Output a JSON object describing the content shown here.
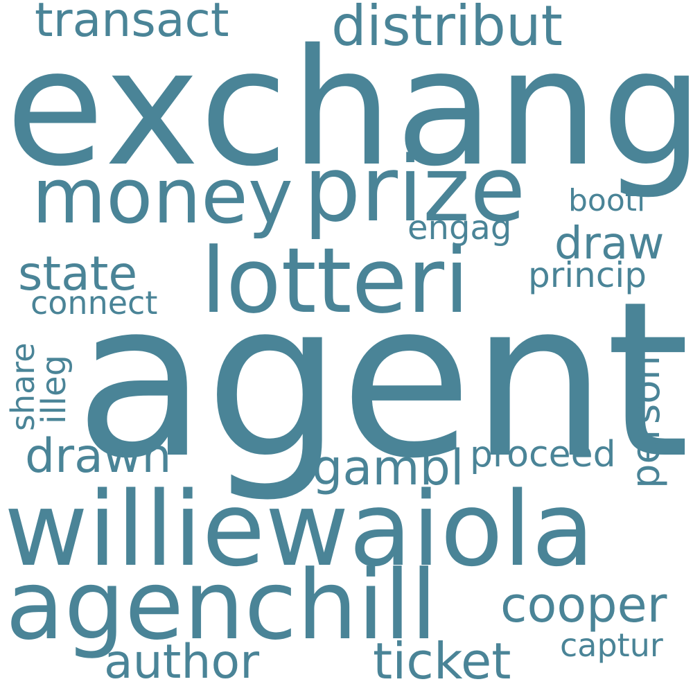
{
  "word_color": "#4a8497",
  "background": "#ffffff",
  "words": {
    "exchang": "exchang",
    "agent": "agent",
    "williewaiola": "williewaiola",
    "agenchill": "agenchill",
    "lotteri": "lotteri",
    "money": "money",
    "prize": "prize",
    "transact": "transact",
    "distribut": "distribut",
    "booti": "booti",
    "engag": "engag",
    "draw": "draw",
    "state": "state",
    "princip": "princip",
    "connect": "connect",
    "share": "share",
    "illeg": "illeg",
    "person": "person",
    "drawn": "drawn",
    "gambl": "gambl",
    "proceed": "proceed",
    "cooper": "cooper",
    "author": "author",
    "ticket": "ticket",
    "captur": "captur"
  }
}
